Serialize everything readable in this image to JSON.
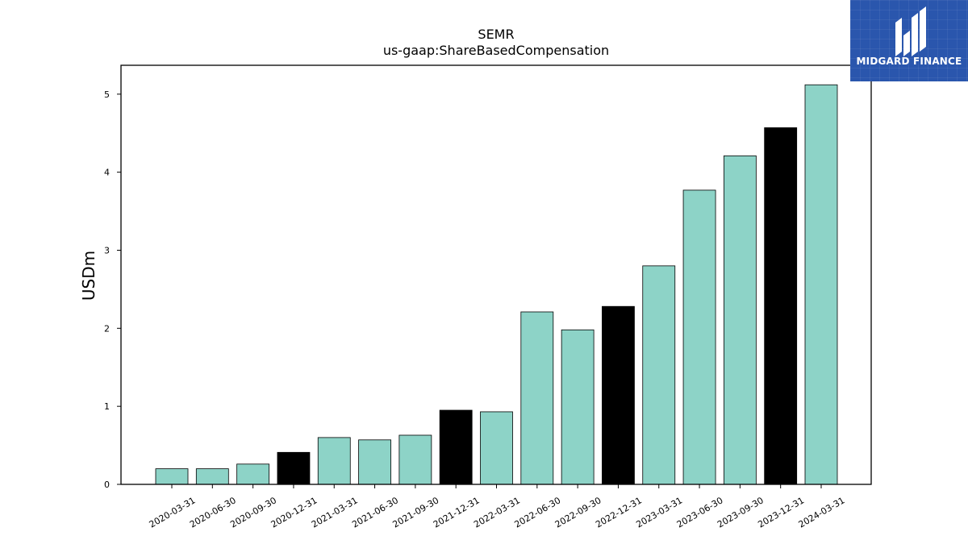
{
  "chart_data": {
    "type": "bar",
    "title": "SEMR",
    "subtitle": "us-gaap:ShareBasedCompensation",
    "xlabel": "",
    "ylabel": "USDm",
    "ylim": [
      0,
      5.37
    ],
    "yticks": [
      0,
      1,
      2,
      3,
      4,
      5
    ],
    "grid": false,
    "categories": [
      "2020-03-31",
      "2020-06-30",
      "2020-09-30",
      "2020-12-31",
      "2021-03-31",
      "2021-06-30",
      "2021-09-30",
      "2021-12-31",
      "2022-03-31",
      "2022-06-30",
      "2022-09-30",
      "2022-12-31",
      "2023-03-31",
      "2023-06-30",
      "2023-09-30",
      "2023-12-31",
      "2024-03-31"
    ],
    "values": [
      0.2,
      0.2,
      0.26,
      0.41,
      0.6,
      0.57,
      0.63,
      0.95,
      0.93,
      2.21,
      1.98,
      2.28,
      2.8,
      3.77,
      4.21,
      4.57,
      5.12
    ],
    "highlight": [
      false,
      false,
      false,
      true,
      false,
      false,
      false,
      true,
      false,
      false,
      false,
      true,
      false,
      false,
      false,
      true,
      false
    ],
    "colors": {
      "bar": "#8dd3c7",
      "highlight": "#000000",
      "edge": "#000000"
    }
  },
  "logo": {
    "text": "MIDGARD FINANCE",
    "background": "#2a56ad",
    "icon": "midgard-logo-icon"
  }
}
